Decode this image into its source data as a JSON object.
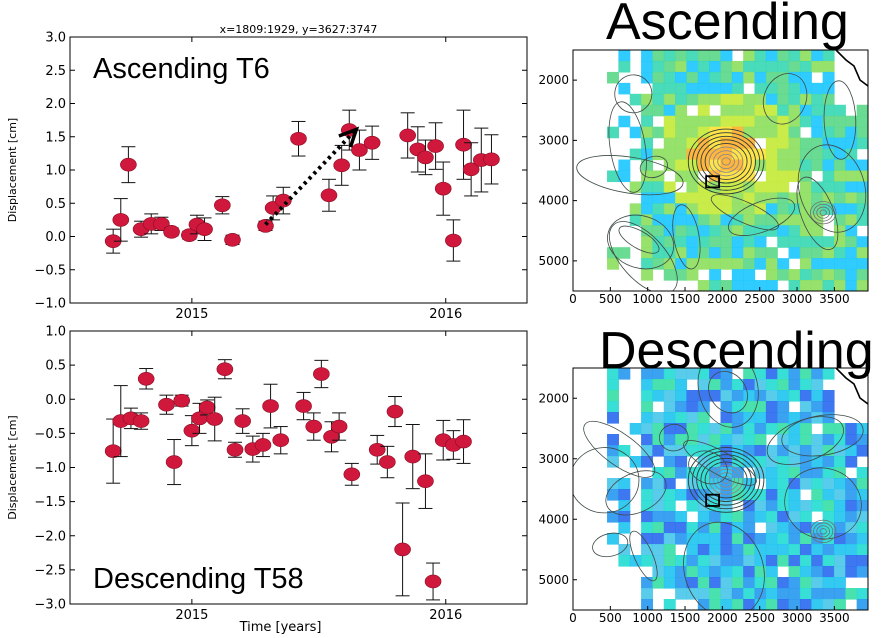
{
  "figure": {
    "title_ascending": "Ascending",
    "title_descending": "Descending"
  },
  "chart_data": [
    {
      "type": "scatter",
      "id": "top",
      "title": "x=1809:1929, y=3627:3747",
      "annotation": "Ascending T6",
      "xlabel": "",
      "ylabel": "Displacement [cm]",
      "xlim": [
        2014.52,
        2016.32
      ],
      "ylim": [
        -1.0,
        3.0
      ],
      "xticks": [
        {
          "value": 2015,
          "label": "2015"
        },
        {
          "value": 2016,
          "label": "2016"
        }
      ],
      "yticks": [
        {
          "value": 3.0,
          "label": "3.0"
        },
        {
          "value": 2.5,
          "label": "2.5"
        },
        {
          "value": 2.0,
          "label": "2.0"
        },
        {
          "value": 1.5,
          "label": "1.5"
        },
        {
          "value": 1.0,
          "label": "1.0"
        },
        {
          "value": 0.5,
          "label": "0.5"
        },
        {
          "value": 0.0,
          "label": "0.0"
        },
        {
          "value": -0.5,
          "label": "−0.5"
        },
        {
          "value": -1.0,
          "label": "−1.0"
        }
      ],
      "marker_color": "#d0183c",
      "arrow": {
        "from": [
          2015.29,
          0.18
        ],
        "to": [
          2015.64,
          1.58
        ]
      },
      "points": [
        {
          "x": 2014.69,
          "y": -0.07,
          "err": 0.18
        },
        {
          "x": 2014.72,
          "y": 0.25,
          "err": 0.32
        },
        {
          "x": 2014.75,
          "y": 1.08,
          "err": 0.27
        },
        {
          "x": 2014.8,
          "y": 0.11,
          "err": 0.12
        },
        {
          "x": 2014.84,
          "y": 0.19,
          "err": 0.15
        },
        {
          "x": 2014.88,
          "y": 0.19,
          "err": 0.1
        },
        {
          "x": 2014.92,
          "y": 0.07,
          "err": 0.06
        },
        {
          "x": 2014.99,
          "y": 0.02,
          "err": 0.06
        },
        {
          "x": 2015.02,
          "y": 0.18,
          "err": 0.14
        },
        {
          "x": 2015.05,
          "y": 0.11,
          "err": 0.17
        },
        {
          "x": 2015.12,
          "y": 0.47,
          "err": 0.13
        },
        {
          "x": 2015.16,
          "y": -0.05,
          "err": 0.07
        },
        {
          "x": 2015.29,
          "y": 0.16,
          "err": 0.07
        },
        {
          "x": 2015.32,
          "y": 0.43,
          "err": 0.18
        },
        {
          "x": 2015.36,
          "y": 0.54,
          "err": 0.2
        },
        {
          "x": 2015.42,
          "y": 1.47,
          "err": 0.26
        },
        {
          "x": 2015.54,
          "y": 0.62,
          "err": 0.24
        },
        {
          "x": 2015.59,
          "y": 1.07,
          "err": 0.3
        },
        {
          "x": 2015.62,
          "y": 1.6,
          "err": 0.3
        },
        {
          "x": 2015.66,
          "y": 1.3,
          "err": 0.3
        },
        {
          "x": 2015.71,
          "y": 1.41,
          "err": 0.25
        },
        {
          "x": 2015.85,
          "y": 1.52,
          "err": 0.34
        },
        {
          "x": 2015.89,
          "y": 1.31,
          "err": 0.34
        },
        {
          "x": 2015.92,
          "y": 1.19,
          "err": 0.26
        },
        {
          "x": 2015.96,
          "y": 1.36,
          "err": 0.35
        },
        {
          "x": 2015.99,
          "y": 0.72,
          "err": 0.4
        },
        {
          "x": 2016.03,
          "y": -0.06,
          "err": 0.31
        },
        {
          "x": 2016.07,
          "y": 1.38,
          "err": 0.52
        },
        {
          "x": 2016.1,
          "y": 1.01,
          "err": 0.4
        },
        {
          "x": 2016.14,
          "y": 1.15,
          "err": 0.48
        },
        {
          "x": 2016.18,
          "y": 1.16,
          "err": 0.37
        }
      ]
    },
    {
      "type": "scatter",
      "id": "bottom",
      "title": "",
      "annotation": "Descending T58",
      "xlabel": "Time [years]",
      "ylabel": "Displacement [cm]",
      "xlim": [
        2014.52,
        2016.32
      ],
      "ylim": [
        -3.0,
        1.0
      ],
      "xticks": [
        {
          "value": 2015,
          "label": "2015"
        },
        {
          "value": 2016,
          "label": "2016"
        }
      ],
      "yticks": [
        {
          "value": 1.0,
          "label": "1.0"
        },
        {
          "value": 0.5,
          "label": "0.5"
        },
        {
          "value": 0.0,
          "label": "0.0"
        },
        {
          "value": -0.5,
          "label": "−0.5"
        },
        {
          "value": -1.0,
          "label": "−1.0"
        },
        {
          "value": -1.5,
          "label": "−1.5"
        },
        {
          "value": -2.0,
          "label": "−2.0"
        },
        {
          "value": -2.5,
          "label": "−2.5"
        },
        {
          "value": -3.0,
          "label": "−3.0"
        }
      ],
      "marker_color": "#d0183c",
      "points": [
        {
          "x": 2014.69,
          "y": -0.76,
          "err": 0.47
        },
        {
          "x": 2014.72,
          "y": -0.32,
          "err": 0.52
        },
        {
          "x": 2014.76,
          "y": -0.28,
          "err": 0.15
        },
        {
          "x": 2014.8,
          "y": -0.32,
          "err": 0.12
        },
        {
          "x": 2014.82,
          "y": 0.3,
          "err": 0.15
        },
        {
          "x": 2014.9,
          "y": -0.08,
          "err": 0.14
        },
        {
          "x": 2014.93,
          "y": -0.92,
          "err": 0.33
        },
        {
          "x": 2014.96,
          "y": -0.02,
          "err": 0.08
        },
        {
          "x": 2015.0,
          "y": -0.46,
          "err": 0.22
        },
        {
          "x": 2015.03,
          "y": -0.28,
          "err": 0.22
        },
        {
          "x": 2015.06,
          "y": -0.12,
          "err": 0.11
        },
        {
          "x": 2015.09,
          "y": -0.29,
          "err": 0.32
        },
        {
          "x": 2015.13,
          "y": 0.44,
          "err": 0.14
        },
        {
          "x": 2015.17,
          "y": -0.74,
          "err": 0.11
        },
        {
          "x": 2015.2,
          "y": -0.32,
          "err": 0.18
        },
        {
          "x": 2015.24,
          "y": -0.73,
          "err": 0.19
        },
        {
          "x": 2015.28,
          "y": -0.67,
          "err": 0.17
        },
        {
          "x": 2015.31,
          "y": -0.1,
          "err": 0.32
        },
        {
          "x": 2015.35,
          "y": -0.6,
          "err": 0.2
        },
        {
          "x": 2015.44,
          "y": -0.1,
          "err": 0.2
        },
        {
          "x": 2015.48,
          "y": -0.4,
          "err": 0.2
        },
        {
          "x": 2015.51,
          "y": 0.37,
          "err": 0.2
        },
        {
          "x": 2015.55,
          "y": -0.55,
          "err": 0.22
        },
        {
          "x": 2015.58,
          "y": -0.4,
          "err": 0.2
        },
        {
          "x": 2015.63,
          "y": -1.1,
          "err": 0.16
        },
        {
          "x": 2015.73,
          "y": -0.74,
          "err": 0.21
        },
        {
          "x": 2015.77,
          "y": -0.92,
          "err": 0.23
        },
        {
          "x": 2015.8,
          "y": -0.18,
          "err": 0.22
        },
        {
          "x": 2015.83,
          "y": -2.2,
          "err": 0.68
        },
        {
          "x": 2015.87,
          "y": -0.84,
          "err": 0.47
        },
        {
          "x": 2015.92,
          "y": -1.2,
          "err": 0.4
        },
        {
          "x": 2015.95,
          "y": -2.67,
          "err": 0.27
        },
        {
          "x": 2015.99,
          "y": -0.6,
          "err": 0.29
        },
        {
          "x": 2016.03,
          "y": -0.67,
          "err": 0.21
        },
        {
          "x": 2016.07,
          "y": -0.62,
          "err": 0.32
        }
      ]
    },
    {
      "type": "heatmap",
      "id": "map-asc",
      "title": "Ascending",
      "xlim": [
        0,
        3950
      ],
      "ylim": [
        5500,
        1500
      ],
      "xticks": [
        {
          "value": 0,
          "label": "0"
        },
        {
          "value": 500,
          "label": "500"
        },
        {
          "value": 1000,
          "label": "1000"
        },
        {
          "value": 1500,
          "label": "1500"
        },
        {
          "value": 2000,
          "label": "2000"
        },
        {
          "value": 2500,
          "label": "2500"
        },
        {
          "value": 3000,
          "label": "3000"
        },
        {
          "value": 3500,
          "label": "3500"
        }
      ],
      "yticks": [
        {
          "value": 2000,
          "label": "2000"
        },
        {
          "value": 3000,
          "label": "3000"
        },
        {
          "value": 4000,
          "label": "4000"
        },
        {
          "value": 5000,
          "label": "5000"
        }
      ],
      "marker_box": [
        1809,
        3627,
        1929,
        3747
      ],
      "palette": [
        "#1ec8ff",
        "#3ad8b4",
        "#5cd88a",
        "#8ee060",
        "#c6ea3c",
        "#ffe23a",
        "#ffb030"
      ]
    },
    {
      "type": "heatmap",
      "id": "map-desc",
      "title": "Descending",
      "xlim": [
        0,
        3950
      ],
      "ylim": [
        5500,
        1500
      ],
      "xticks": [
        {
          "value": 0,
          "label": "0"
        },
        {
          "value": 500,
          "label": "500"
        },
        {
          "value": 1000,
          "label": "1000"
        },
        {
          "value": 1500,
          "label": "1500"
        },
        {
          "value": 2000,
          "label": "2000"
        },
        {
          "value": 2500,
          "label": "2500"
        },
        {
          "value": 3000,
          "label": "3000"
        },
        {
          "value": 3500,
          "label": "3500"
        }
      ],
      "yticks": [
        {
          "value": 2000,
          "label": "2000"
        },
        {
          "value": 3000,
          "label": "3000"
        },
        {
          "value": 4000,
          "label": "4000"
        },
        {
          "value": 5000,
          "label": "5000"
        }
      ],
      "marker_box": [
        1809,
        3627,
        1929,
        3747
      ],
      "palette": [
        "#2e6cf0",
        "#2a9af0",
        "#22c4f0",
        "#26dcd2",
        "#3ae0a8",
        "#4ac8e8"
      ]
    }
  ]
}
